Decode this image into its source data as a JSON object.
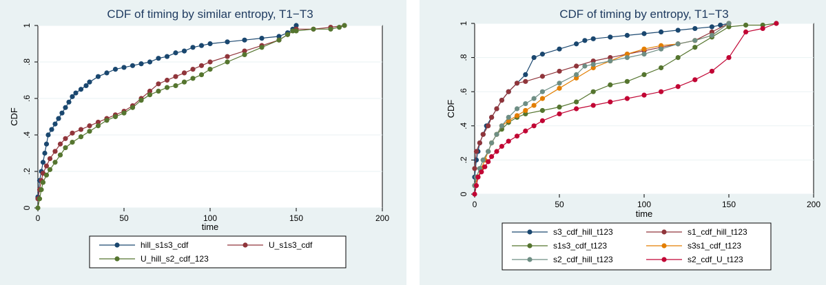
{
  "chart_data": [
    {
      "type": "line",
      "title": "CDF of timing by similar entropy, T1−T3",
      "xlabel": "time",
      "ylabel": "CDF",
      "xlim": [
        0,
        200
      ],
      "ylim": [
        0,
        1
      ],
      "xticks": [
        0,
        50,
        100,
        150,
        200
      ],
      "yticks": [
        0,
        0.2,
        0.4,
        0.6,
        0.8,
        1
      ],
      "ytick_labels": [
        "0",
        ".2",
        ".4",
        ".6",
        ".8",
        "1"
      ],
      "grid": true,
      "legend_position": "bottom",
      "legend_columns": 2,
      "series": [
        {
          "name": "hill_s1s3_cdf",
          "color": "#1a476f",
          "x": [
            0,
            1,
            2,
            3,
            4,
            5,
            6,
            8,
            10,
            12,
            14,
            16,
            18,
            20,
            22,
            25,
            28,
            30,
            35,
            40,
            45,
            50,
            55,
            60,
            65,
            70,
            75,
            80,
            85,
            90,
            95,
            100,
            110,
            120,
            130,
            140,
            145,
            148,
            150
          ],
          "y": [
            0.06,
            0.15,
            0.2,
            0.25,
            0.3,
            0.35,
            0.4,
            0.43,
            0.46,
            0.49,
            0.52,
            0.55,
            0.58,
            0.61,
            0.63,
            0.65,
            0.67,
            0.69,
            0.72,
            0.74,
            0.76,
            0.77,
            0.78,
            0.79,
            0.8,
            0.82,
            0.83,
            0.85,
            0.86,
            0.88,
            0.89,
            0.9,
            0.91,
            0.92,
            0.93,
            0.94,
            0.96,
            0.98,
            1.0
          ]
        },
        {
          "name": "U_s1s3_cdf",
          "color": "#90353b",
          "x": [
            0,
            1,
            2,
            3,
            5,
            7,
            10,
            13,
            16,
            20,
            25,
            30,
            35,
            40,
            45,
            50,
            55,
            60,
            65,
            70,
            75,
            80,
            85,
            90,
            95,
            100,
            110,
            120,
            130,
            140,
            145,
            150,
            160,
            170,
            178
          ],
          "y": [
            0.05,
            0.1,
            0.15,
            0.19,
            0.23,
            0.27,
            0.31,
            0.35,
            0.38,
            0.41,
            0.43,
            0.45,
            0.47,
            0.49,
            0.51,
            0.53,
            0.56,
            0.6,
            0.64,
            0.68,
            0.7,
            0.72,
            0.74,
            0.76,
            0.78,
            0.8,
            0.83,
            0.86,
            0.89,
            0.92,
            0.95,
            0.98,
            0.98,
            0.99,
            1.0
          ]
        },
        {
          "name": "U_hill_s2_cdf_123",
          "color": "#55752f",
          "x": [
            0,
            1,
            2,
            3,
            5,
            7,
            10,
            13,
            16,
            20,
            25,
            30,
            35,
            40,
            45,
            50,
            55,
            60,
            65,
            70,
            75,
            80,
            85,
            90,
            95,
            100,
            110,
            120,
            130,
            140,
            145,
            148,
            150,
            160,
            170,
            175,
            178
          ],
          "y": [
            0.0,
            0.05,
            0.1,
            0.14,
            0.18,
            0.21,
            0.25,
            0.29,
            0.33,
            0.36,
            0.39,
            0.42,
            0.45,
            0.48,
            0.5,
            0.52,
            0.55,
            0.59,
            0.62,
            0.64,
            0.66,
            0.67,
            0.69,
            0.71,
            0.73,
            0.76,
            0.8,
            0.84,
            0.88,
            0.92,
            0.95,
            0.97,
            0.97,
            0.98,
            0.98,
            0.99,
            1.0
          ]
        }
      ]
    },
    {
      "type": "line",
      "title": "CDF of timing by entropy, T1−T3",
      "xlabel": "time",
      "ylabel": "CDF",
      "xlim": [
        0,
        200
      ],
      "ylim": [
        0,
        1
      ],
      "xticks": [
        0,
        50,
        100,
        150,
        200
      ],
      "yticks": [
        0,
        0.2,
        0.4,
        0.6,
        0.8,
        1
      ],
      "ytick_labels": [
        "0",
        ".2",
        ".4",
        ".6",
        ".8",
        "1"
      ],
      "grid": true,
      "legend_position": "bottom",
      "legend_columns": 2,
      "series": [
        {
          "name": "s3_cdf_hill_t123",
          "color": "#1a476f",
          "x": [
            0,
            1,
            2,
            3,
            5,
            7,
            10,
            13,
            16,
            20,
            25,
            30,
            35,
            40,
            50,
            60,
            65,
            70,
            80,
            90,
            100,
            110,
            120,
            130,
            140,
            145,
            150
          ],
          "y": [
            0.1,
            0.2,
            0.25,
            0.3,
            0.35,
            0.4,
            0.45,
            0.5,
            0.55,
            0.6,
            0.65,
            0.7,
            0.8,
            0.82,
            0.85,
            0.88,
            0.9,
            0.91,
            0.92,
            0.93,
            0.94,
            0.95,
            0.96,
            0.97,
            0.98,
            0.99,
            1.0
          ]
        },
        {
          "name": "s1_cdf_hill_t123",
          "color": "#90353b",
          "x": [
            0,
            1,
            3,
            5,
            8,
            10,
            13,
            16,
            20,
            25,
            30,
            40,
            50,
            60,
            70,
            80,
            90,
            100,
            110,
            120,
            130,
            140,
            150
          ],
          "y": [
            0.15,
            0.25,
            0.3,
            0.35,
            0.4,
            0.45,
            0.5,
            0.55,
            0.6,
            0.65,
            0.66,
            0.69,
            0.72,
            0.75,
            0.78,
            0.8,
            0.82,
            0.84,
            0.86,
            0.88,
            0.9,
            0.95,
            1.0
          ]
        },
        {
          "name": "s1s3_cdf_t123",
          "color": "#55752f",
          "x": [
            0,
            1,
            3,
            5,
            8,
            10,
            13,
            16,
            20,
            25,
            30,
            40,
            50,
            60,
            70,
            80,
            90,
            100,
            110,
            120,
            130,
            140,
            150,
            160,
            170,
            178
          ],
          "y": [
            0.05,
            0.1,
            0.15,
            0.2,
            0.25,
            0.3,
            0.35,
            0.38,
            0.42,
            0.45,
            0.47,
            0.49,
            0.51,
            0.54,
            0.6,
            0.64,
            0.66,
            0.7,
            0.74,
            0.8,
            0.86,
            0.92,
            0.98,
            0.99,
            0.99,
            1.0
          ]
        },
        {
          "name": "s3s1_cdf_t123",
          "color": "#e37e00",
          "x": [
            0,
            2,
            4,
            6,
            8,
            10,
            13,
            16,
            20,
            25,
            30,
            35,
            40,
            50,
            60,
            70,
            80,
            90,
            100,
            110,
            120,
            130,
            140,
            150
          ],
          "y": [
            0.05,
            0.1,
            0.15,
            0.2,
            0.25,
            0.3,
            0.35,
            0.4,
            0.43,
            0.46,
            0.49,
            0.52,
            0.56,
            0.62,
            0.68,
            0.74,
            0.78,
            0.82,
            0.85,
            0.87,
            0.88,
            0.9,
            0.93,
            1.0
          ]
        },
        {
          "name": "s2_cdf_hill_t123",
          "color": "#6e8e84",
          "x": [
            0,
            1,
            3,
            5,
            8,
            10,
            13,
            16,
            20,
            25,
            30,
            35,
            40,
            50,
            60,
            65,
            70,
            80,
            90,
            100,
            110,
            120,
            130,
            140,
            150
          ],
          "y": [
            0.05,
            0.1,
            0.15,
            0.2,
            0.25,
            0.3,
            0.35,
            0.4,
            0.45,
            0.5,
            0.53,
            0.56,
            0.6,
            0.65,
            0.7,
            0.75,
            0.76,
            0.78,
            0.8,
            0.82,
            0.85,
            0.88,
            0.9,
            0.93,
            1.0
          ]
        },
        {
          "name": "s2_cdf_U_t123",
          "color": "#c10534",
          "x": [
            0,
            1,
            2,
            4,
            6,
            8,
            10,
            13,
            16,
            20,
            25,
            30,
            35,
            40,
            50,
            60,
            70,
            80,
            90,
            100,
            110,
            120,
            130,
            140,
            150,
            160,
            170,
            178
          ],
          "y": [
            0.0,
            0.05,
            0.1,
            0.13,
            0.16,
            0.19,
            0.22,
            0.25,
            0.28,
            0.31,
            0.34,
            0.37,
            0.4,
            0.43,
            0.47,
            0.5,
            0.52,
            0.54,
            0.56,
            0.58,
            0.6,
            0.63,
            0.67,
            0.72,
            0.8,
            0.95,
            0.97,
            1.0
          ]
        }
      ]
    }
  ]
}
